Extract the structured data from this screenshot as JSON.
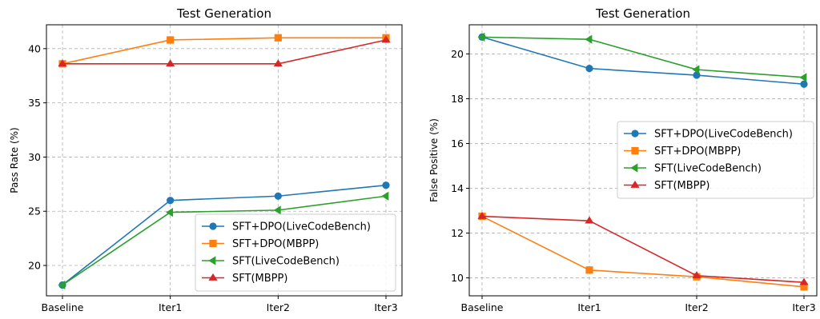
{
  "chart_data": [
    {
      "type": "line",
      "title": "Test Generation",
      "xlabel": "",
      "ylabel": "Pass Rate (%)",
      "categories": [
        "Baseline",
        "Iter1",
        "Iter2",
        "Iter3"
      ],
      "ylim": [
        17.2,
        42.2
      ],
      "yticks": [
        20,
        25,
        30,
        35,
        40
      ],
      "grid": true,
      "legend_position": "lower-right",
      "series": [
        {
          "name": "SFT+DPO(LiveCodeBench)",
          "values": [
            18.2,
            26.0,
            26.4,
            27.4
          ],
          "color": "#1f77b4",
          "marker": "circle"
        },
        {
          "name": "SFT+DPO(MBPP)",
          "values": [
            38.6,
            40.8,
            41.0,
            41.0
          ],
          "color": "#ff7f0e",
          "marker": "square"
        },
        {
          "name": "SFT(LiveCodeBench)",
          "values": [
            18.2,
            24.9,
            25.1,
            26.4
          ],
          "color": "#2ca02c",
          "marker": "triangle-left"
        },
        {
          "name": "SFT(MBPP)",
          "values": [
            38.6,
            38.6,
            38.6,
            40.8
          ],
          "color": "#d62728",
          "marker": "triangle-up"
        }
      ]
    },
    {
      "type": "line",
      "title": "Test Generation",
      "xlabel": "",
      "ylabel": "False Positive (%)",
      "categories": [
        "Baseline",
        "Iter1",
        "Iter2",
        "Iter3"
      ],
      "ylim": [
        9.2,
        21.3
      ],
      "yticks": [
        10,
        12,
        14,
        16,
        18,
        20
      ],
      "grid": true,
      "legend_position": "center-right",
      "series": [
        {
          "name": "SFT+DPO(LiveCodeBench)",
          "values": [
            20.75,
            19.35,
            19.05,
            18.65
          ],
          "color": "#1f77b4",
          "marker": "circle"
        },
        {
          "name": "SFT+DPO(MBPP)",
          "values": [
            12.75,
            10.35,
            10.05,
            9.6
          ],
          "color": "#ff7f0e",
          "marker": "square"
        },
        {
          "name": "SFT(LiveCodeBench)",
          "values": [
            20.75,
            20.65,
            19.3,
            18.95
          ],
          "color": "#2ca02c",
          "marker": "triangle-left"
        },
        {
          "name": "SFT(MBPP)",
          "values": [
            12.75,
            12.55,
            10.1,
            9.8
          ],
          "color": "#d62728",
          "marker": "triangle-up"
        }
      ]
    }
  ]
}
